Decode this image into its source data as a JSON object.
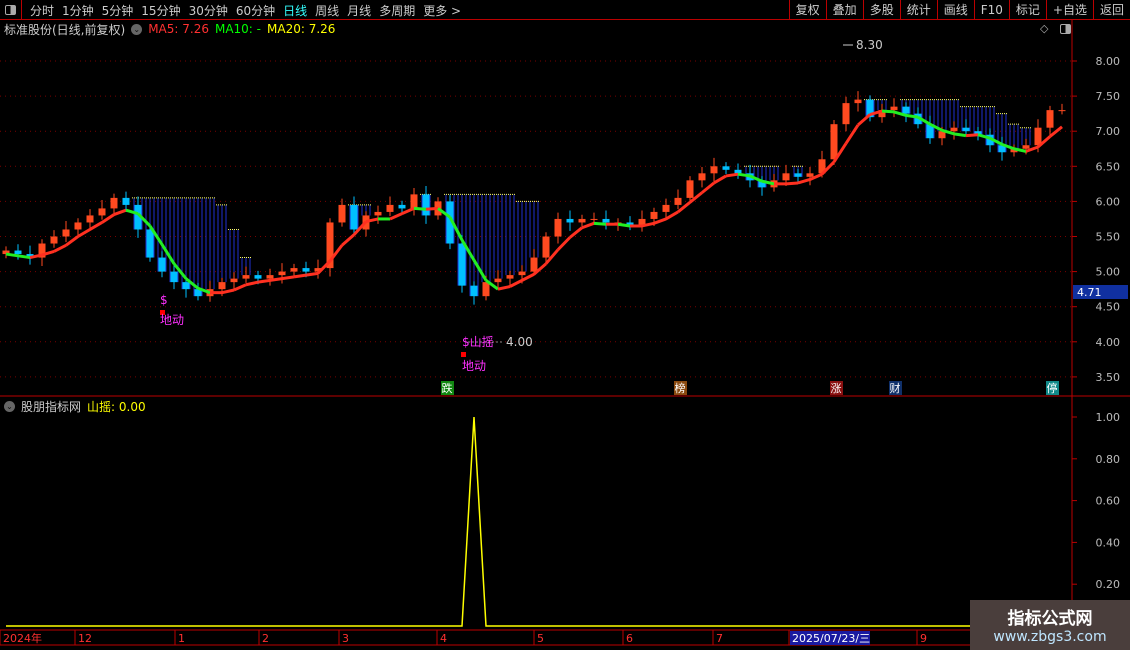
{
  "toolbar": {
    "periods": [
      "分时",
      "1分钟",
      "5分钟",
      "15分钟",
      "30分钟",
      "60分钟",
      "日线",
      "周线",
      "月线",
      "多周期",
      "更多 >"
    ],
    "active_period": "日线",
    "tools": [
      "复权",
      "叠加",
      "多股",
      "统计",
      "画线",
      "F10",
      "标记",
      "+自选",
      "返回"
    ]
  },
  "main_info": {
    "title": "标准股份(日线,前复权)",
    "ma5": "MA5: 7.26",
    "ma10": "MA10: -",
    "ma20": "MA20: 7.26",
    "colors": {
      "ma5": "#ff3030",
      "ma10": "#00ff00",
      "ma20": "#ffff00"
    }
  },
  "indicator_info": {
    "title": "股朋指标网",
    "value": "山摇: 0.00"
  },
  "chart_data": [
    {
      "type": "candlestick",
      "y_ticks": [
        "8.00",
        "7.50",
        "7.00",
        "6.50",
        "6.00",
        "5.50",
        "5.00",
        "4.50",
        "4.00",
        "3.50"
      ],
      "ylim": [
        3.3,
        8.5
      ],
      "closes": [
        5.3,
        5.25,
        5.2,
        5.4,
        5.5,
        5.6,
        5.7,
        5.8,
        5.9,
        6.05,
        5.95,
        5.6,
        5.2,
        5.0,
        4.85,
        4.75,
        4.65,
        4.75,
        4.85,
        4.9,
        4.95,
        4.9,
        4.95,
        5.0,
        5.05,
        5.0,
        5.05,
        5.7,
        5.95,
        5.6,
        5.8,
        5.85,
        5.95,
        5.9,
        6.1,
        5.8,
        6.0,
        5.4,
        4.8,
        4.65,
        4.85,
        4.9,
        4.95,
        5.0,
        5.2,
        5.5,
        5.75,
        5.7,
        5.75,
        5.75,
        5.7,
        5.7,
        5.65,
        5.75,
        5.85,
        5.95,
        6.05,
        6.3,
        6.4,
        6.5,
        6.45,
        6.4,
        6.3,
        6.2,
        6.3,
        6.4,
        6.35,
        6.4,
        6.6,
        7.1,
        7.4,
        7.45,
        7.2,
        7.3,
        7.35,
        7.25,
        7.1,
        6.9,
        7.0,
        7.05,
        7.0,
        6.95,
        6.8,
        6.7,
        6.75,
        6.8,
        7.05,
        7.3,
        7.3
      ],
      "high_label": "8.30",
      "low_label": "4.00",
      "current_price": "4.71",
      "signals": [
        {
          "text": "$",
          "sub": "地动"
        },
        {
          "text": "$山摇",
          "sub": "地动"
        }
      ],
      "event_markers": [
        {
          "text": "跌",
          "color": "#118811"
        },
        {
          "text": "榜",
          "color": "#8a4a10"
        },
        {
          "text": "涨",
          "color": "#8a1010"
        },
        {
          "text": "财",
          "color": "#10306a"
        },
        {
          "text": "停",
          "color": "#108888"
        }
      ],
      "colors": {
        "up": "#ff4a20",
        "down": "#00c0ff",
        "ma": "#ff3020",
        "ma_down": "#22ee22"
      }
    },
    {
      "type": "line",
      "series": [
        {
          "name": "山摇",
          "color": "#ffff00",
          "values": [
            0,
            0,
            0,
            0,
            0,
            0,
            0,
            0,
            0,
            0,
            0,
            0,
            0,
            0,
            0,
            0,
            0,
            0,
            0,
            0,
            0,
            0,
            0,
            0,
            0,
            0,
            0,
            0,
            0,
            0,
            0,
            0,
            0,
            0,
            0,
            0,
            0,
            0,
            0,
            1,
            0,
            0,
            0,
            0,
            0,
            0,
            0,
            0,
            0,
            0,
            0,
            0,
            0,
            0,
            0,
            0,
            0,
            0,
            0,
            0,
            0,
            0,
            0,
            0,
            0,
            0,
            0,
            0,
            0,
            0,
            0,
            0,
            0,
            0,
            0,
            0,
            0,
            0,
            0,
            0,
            0,
            0,
            0,
            0,
            0,
            0,
            0,
            0,
            0
          ]
        }
      ],
      "y_ticks": [
        "1.00",
        "0.80",
        "0.60",
        "0.40",
        "0.20"
      ],
      "ylim": [
        0,
        1.05
      ]
    }
  ],
  "x_axis": {
    "labels": [
      "2024年",
      "12",
      "1",
      "2",
      "3",
      "4",
      "5",
      "6",
      "7",
      "2025/07/23/三",
      "9"
    ]
  },
  "watermark": {
    "line1": "指标公式网",
    "line2": "www.zbgs3.com"
  }
}
